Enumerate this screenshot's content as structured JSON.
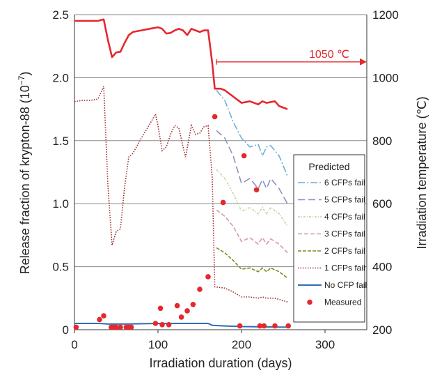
{
  "chart_data": {
    "type": "line",
    "xlabel": "Irradiation duration (days)",
    "ylabel": "Release fraction of krypton-88  (10",
    "ylabel_exp": "−7",
    "ylabel_close": ")",
    "y2label": "Irradiation temperature (℃)",
    "xlim": [
      0,
      350
    ],
    "ylim": [
      0,
      2.5
    ],
    "y2lim": [
      200,
      1200
    ],
    "x_ticks": [
      "0",
      "100",
      "200",
      "300"
    ],
    "y_ticks": [
      "0",
      "0.5",
      "1.0",
      "1.5",
      "2.0",
      "2.5"
    ],
    "y2_ticks": [
      "200",
      "400",
      "600",
      "800",
      "1000",
      "1200"
    ],
    "grid": "horizontal",
    "annotation": {
      "text": "1050 ℃",
      "arrow_from_x": 170,
      "arrow_to_x": 350,
      "y2": 1050
    },
    "legend": {
      "title": "Predicted",
      "placement": "lower-right",
      "entries": [
        "6 CFPs fail",
        "5 CFPs fail",
        "4 CFPs fail",
        "3 CFPs fail",
        "2 CFPs fail",
        "1 CFPs fail",
        "No CFP fail",
        "Measured"
      ]
    },
    "temperature": {
      "color": "#e5282e",
      "points": [
        [
          0,
          1180
        ],
        [
          10,
          1180
        ],
        [
          20,
          1180
        ],
        [
          28,
          1180
        ],
        [
          35,
          1185
        ],
        [
          40,
          1120
        ],
        [
          45,
          1065
        ],
        [
          50,
          1080
        ],
        [
          55,
          1082
        ],
        [
          60,
          1110
        ],
        [
          65,
          1135
        ],
        [
          70,
          1145
        ],
        [
          80,
          1150
        ],
        [
          90,
          1155
        ],
        [
          100,
          1160
        ],
        [
          105,
          1155
        ],
        [
          110,
          1140
        ],
        [
          115,
          1142
        ],
        [
          120,
          1150
        ],
        [
          125,
          1155
        ],
        [
          130,
          1150
        ],
        [
          135,
          1135
        ],
        [
          140,
          1155
        ],
        [
          145,
          1150
        ],
        [
          150,
          1145
        ],
        [
          155,
          1150
        ],
        [
          160,
          1150
        ],
        [
          165,
          1045
        ],
        [
          168,
          965
        ],
        [
          175,
          965
        ],
        [
          180,
          960
        ],
        [
          200,
          920
        ],
        [
          210,
          925
        ],
        [
          220,
          915
        ],
        [
          225,
          925
        ],
        [
          230,
          920
        ],
        [
          240,
          925
        ],
        [
          245,
          910
        ],
        [
          255,
          900
        ]
      ]
    },
    "series": [
      {
        "name": "6 CFPs fail",
        "color": "#6aaed6",
        "dash": "10 3 2 3",
        "points": [
          [
            170,
            1.9
          ],
          [
            180,
            1.82
          ],
          [
            190,
            1.65
          ],
          [
            200,
            1.52
          ],
          [
            210,
            1.45
          ],
          [
            220,
            1.47
          ],
          [
            225,
            1.38
          ],
          [
            230,
            1.45
          ],
          [
            235,
            1.46
          ],
          [
            245,
            1.38
          ],
          [
            255,
            1.22
          ]
        ]
      },
      {
        "name": "5 CFPs fail",
        "color": "#8e8ec4",
        "dash": "10 5",
        "points": [
          [
            170,
            1.58
          ],
          [
            180,
            1.52
          ],
          [
            190,
            1.38
          ],
          [
            200,
            1.16
          ],
          [
            210,
            1.2
          ],
          [
            220,
            1.12
          ],
          [
            225,
            1.19
          ],
          [
            230,
            1.12
          ],
          [
            235,
            1.2
          ],
          [
            245,
            1.12
          ],
          [
            255,
            1.0
          ]
        ]
      },
      {
        "name": "4 CFPs fail",
        "color": "#b9d29b",
        "dash": "3 2 1 2",
        "points": [
          [
            170,
            1.27
          ],
          [
            180,
            1.2
          ],
          [
            190,
            1.08
          ],
          [
            200,
            0.94
          ],
          [
            210,
            0.97
          ],
          [
            220,
            0.92
          ],
          [
            225,
            0.97
          ],
          [
            230,
            0.92
          ],
          [
            235,
            0.97
          ],
          [
            245,
            0.92
          ],
          [
            255,
            0.82
          ]
        ]
      },
      {
        "name": "3 CFPs fail",
        "color": "#d79aa5",
        "dash": "6 3",
        "points": [
          [
            170,
            0.95
          ],
          [
            180,
            0.9
          ],
          [
            190,
            0.82
          ],
          [
            200,
            0.7
          ],
          [
            210,
            0.73
          ],
          [
            220,
            0.68
          ],
          [
            225,
            0.73
          ],
          [
            230,
            0.68
          ],
          [
            235,
            0.72
          ],
          [
            245,
            0.68
          ],
          [
            255,
            0.61
          ]
        ]
      },
      {
        "name": "2 CFPs fail",
        "color": "#7a8c1e",
        "dash": "5 2",
        "points": [
          [
            170,
            0.65
          ],
          [
            180,
            0.61
          ],
          [
            190,
            0.55
          ],
          [
            200,
            0.48
          ],
          [
            210,
            0.49
          ],
          [
            220,
            0.46
          ],
          [
            225,
            0.49
          ],
          [
            230,
            0.46
          ],
          [
            235,
            0.49
          ],
          [
            245,
            0.46
          ],
          [
            255,
            0.41
          ]
        ]
      },
      {
        "name": "1 CFPs fail",
        "color": "#9b2a2a",
        "dash": "1.5 2",
        "points": [
          [
            0,
            1.81
          ],
          [
            10,
            1.82
          ],
          [
            20,
            1.82
          ],
          [
            28,
            1.83
          ],
          [
            35,
            1.93
          ],
          [
            40,
            1.15
          ],
          [
            45,
            0.67
          ],
          [
            50,
            0.78
          ],
          [
            55,
            0.8
          ],
          [
            60,
            1.13
          ],
          [
            65,
            1.37
          ],
          [
            70,
            1.4
          ],
          [
            80,
            1.52
          ],
          [
            90,
            1.63
          ],
          [
            97,
            1.71
          ],
          [
            100,
            1.62
          ],
          [
            105,
            1.42
          ],
          [
            110,
            1.45
          ],
          [
            115,
            1.55
          ],
          [
            120,
            1.62
          ],
          [
            125,
            1.6
          ],
          [
            130,
            1.45
          ],
          [
            133,
            1.37
          ],
          [
            140,
            1.62
          ],
          [
            145,
            1.55
          ],
          [
            150,
            1.56
          ],
          [
            155,
            1.61
          ],
          [
            160,
            1.62
          ],
          [
            165,
            1.2
          ],
          [
            168,
            0.34
          ],
          [
            180,
            0.33
          ],
          [
            190,
            0.3
          ],
          [
            200,
            0.26
          ],
          [
            210,
            0.26
          ],
          [
            220,
            0.25
          ],
          [
            225,
            0.26
          ],
          [
            230,
            0.25
          ],
          [
            240,
            0.25
          ],
          [
            255,
            0.22
          ]
        ]
      },
      {
        "name": "No CFP fail",
        "color": "#2e6db4",
        "dash": "",
        "points": [
          [
            0,
            0.05
          ],
          [
            30,
            0.05
          ],
          [
            40,
            0.045
          ],
          [
            60,
            0.045
          ],
          [
            100,
            0.05
          ],
          [
            120,
            0.05
          ],
          [
            140,
            0.05
          ],
          [
            160,
            0.05
          ],
          [
            165,
            0.035
          ],
          [
            180,
            0.03
          ],
          [
            200,
            0.025
          ],
          [
            255,
            0.02
          ]
        ]
      }
    ],
    "measured": {
      "color": "#e5282e",
      "points": [
        [
          2,
          0.02
        ],
        [
          30,
          0.08
        ],
        [
          35,
          0.11
        ],
        [
          44,
          0.02
        ],
        [
          47,
          0.02
        ],
        [
          50,
          0.02
        ],
        [
          55,
          0.02
        ],
        [
          62,
          0.02
        ],
        [
          65,
          0.02
        ],
        [
          68,
          0.02
        ],
        [
          97,
          0.05
        ],
        [
          103,
          0.17
        ],
        [
          105,
          0.04
        ],
        [
          113,
          0.04
        ],
        [
          123,
          0.19
        ],
        [
          128,
          0.1
        ],
        [
          135,
          0.15
        ],
        [
          142,
          0.2
        ],
        [
          150,
          0.32
        ],
        [
          160,
          0.42
        ],
        [
          168,
          1.69
        ],
        [
          178,
          1.01
        ],
        [
          198,
          0.03
        ],
        [
          203,
          1.38
        ],
        [
          218,
          1.11
        ],
        [
          222,
          0.03
        ],
        [
          227,
          0.03
        ],
        [
          240,
          0.03
        ],
        [
          256,
          0.03
        ]
      ]
    }
  }
}
